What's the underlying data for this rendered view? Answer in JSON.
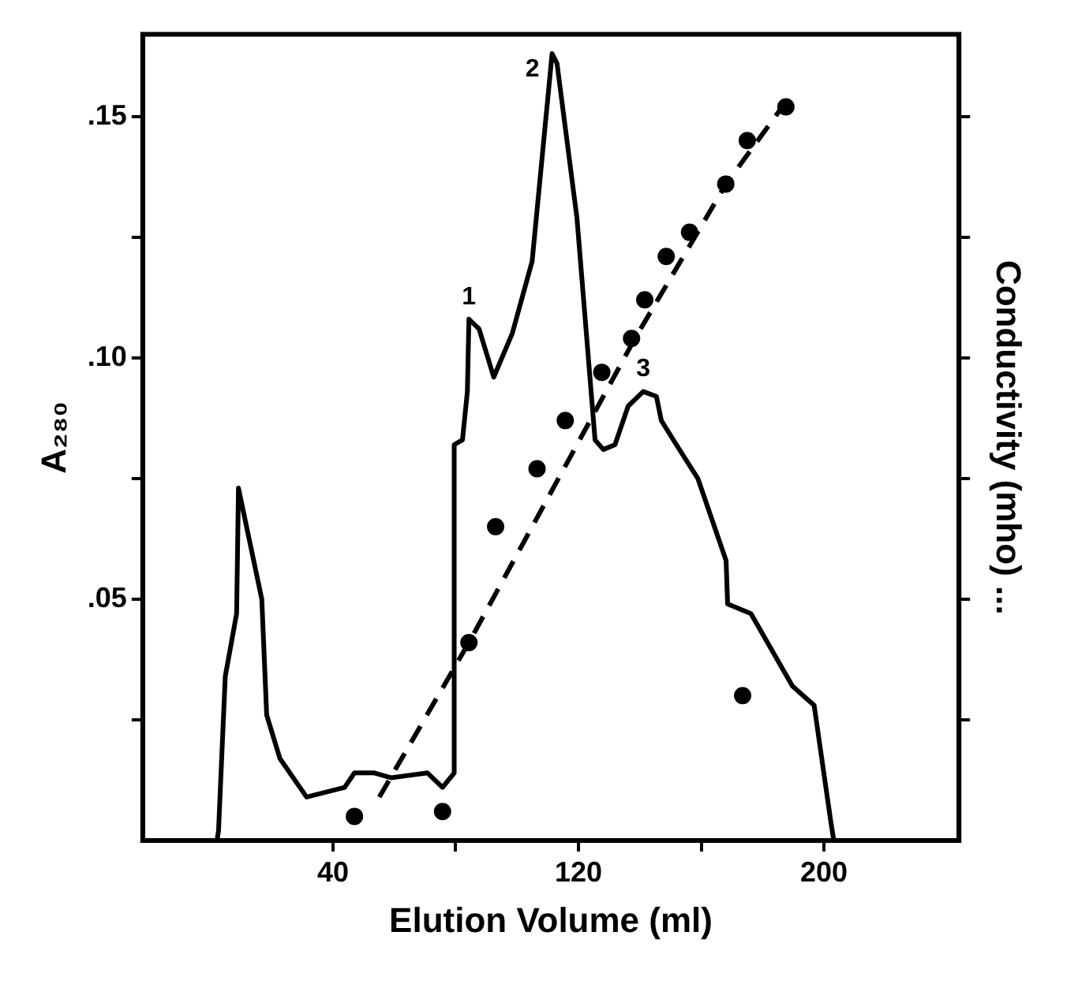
{
  "chart_data": {
    "type": "line",
    "xlabel": "Elution Volume (ml)",
    "ylabel": "A₂₈₀",
    "y2label": "Conductivity (mho) ...",
    "xlim": [
      -22,
      244
    ],
    "xticks": [
      40,
      {
        "value": 80,
        "label": null
      },
      120,
      {
        "value": 160,
        "label": null
      },
      200
    ],
    "ylim": [
      0,
      0.167
    ],
    "yticks": [
      {
        "value": 0.025,
        "label": null
      },
      {
        "value": 0.05,
        "label": ".05"
      },
      {
        "value": 0.075,
        "label": null
      },
      {
        "value": 0.1,
        "label": ".10"
      },
      {
        "value": 0.125,
        "label": null
      },
      {
        "value": 0.15,
        "label": ".15"
      }
    ],
    "grid": false,
    "legend": false,
    "line_style": "solid",
    "annotations": [
      {
        "text": "1",
        "x": 84.3,
        "y": 0.108
      },
      {
        "text": "2",
        "x": 111.4,
        "y": 0.163
      },
      {
        "text": "3",
        "x": 141.1,
        "y": 0.093
      }
    ],
    "series": [
      {
        "color": "#000000",
        "marker": "none",
        "x": [
          2.2,
          2.7,
          4.9,
          8.6,
          9.2,
          16.8,
          18.4,
          22.7,
          31.4,
          43.8,
          47.0,
          53.5,
          58.9,
          70.8,
          75.7,
          79.5,
          79.5,
          82.2,
          83.8,
          84.3,
          87.6,
          92.4,
          98.4,
          104.9,
          111.4,
          113.0,
          119.5,
          125.4,
          128.1,
          131.9,
          136.2,
          141.1,
          145.4,
          147.0,
          151.9,
          158.9,
          168.1,
          168.6,
          176.2,
          189.7,
          196.8,
          202.2,
          203.2
        ],
        "values": [
          0,
          0.002,
          0.034,
          0.047,
          0.073,
          0.05,
          0.026,
          0.017,
          0.009,
          0.011,
          0.014,
          0.014,
          0.013,
          0.014,
          0.011,
          0.014,
          0.082,
          0.083,
          0.093,
          0.108,
          0.106,
          0.096,
          0.105,
          0.12,
          0.163,
          0.161,
          0.129,
          0.083,
          0.081,
          0.082,
          0.09,
          0.093,
          0.092,
          0.087,
          0.082,
          0.075,
          0.058,
          0.049,
          0.047,
          0.032,
          0.028,
          0.004,
          0
        ]
      },
      {
        "type": "line",
        "color": "#000000",
        "marker": "none",
        "line_style": "dashed",
        "x": [
          55.1,
          84.3,
          138.4,
          168.1,
          187.6
        ],
        "values": [
          0.009,
          0.041,
          0.104,
          0.136,
          0.153
        ]
      },
      {
        "type": "scatter",
        "color": "#000000",
        "marker": "circle",
        "x": [
          47,
          75.7,
          84.3,
          93,
          106.5,
          115.7,
          127.6,
          137.3,
          141.6,
          148.6,
          156.2,
          168,
          173.5,
          175,
          187.6
        ],
        "values": [
          0.005,
          0.006,
          0.041,
          0.065,
          0.077,
          0.087,
          0.097,
          0.104,
          0.112,
          0.121,
          0.126,
          0.136,
          0.03,
          0.145,
          0.152
        ]
      }
    ]
  }
}
